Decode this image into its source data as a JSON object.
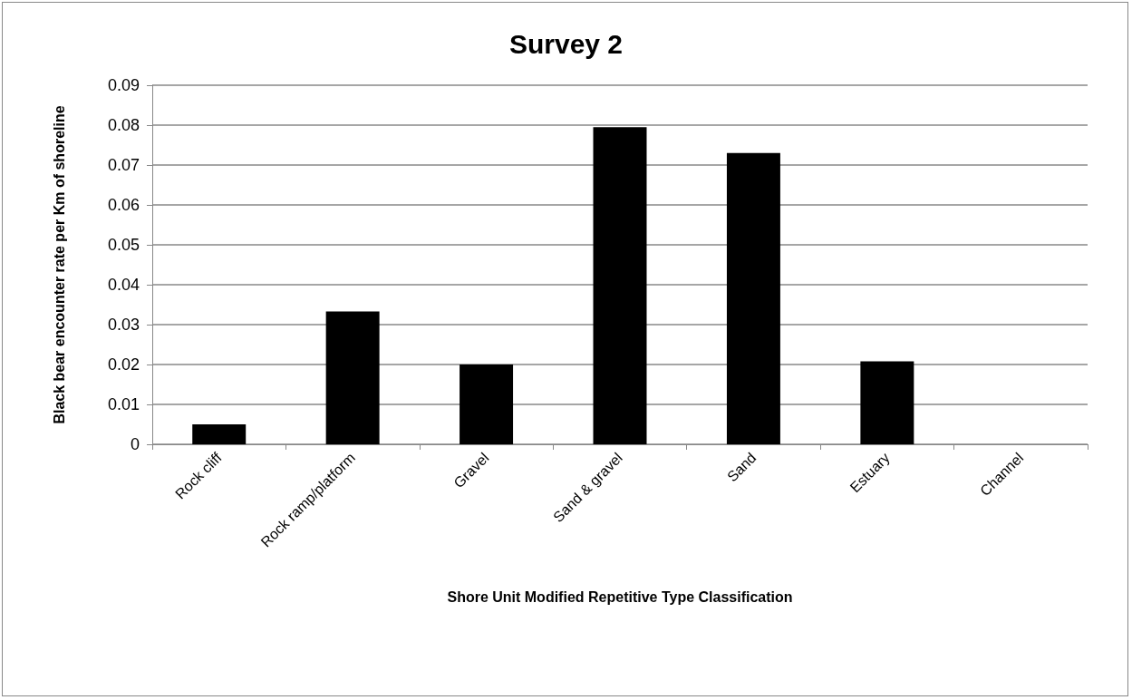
{
  "chart_data": {
    "type": "bar",
    "title": "Survey 2",
    "xlabel": "Shore Unit Modified Repetitive Type Classification",
    "ylabel": "Black bear encounter rate per Km of shoreline",
    "categories": [
      "Rock cliff",
      "Rock ramp/platform",
      "Gravel",
      "Sand & gravel",
      "Sand",
      "Estuary",
      "Channel"
    ],
    "values": [
      0.005,
      0.0333,
      0.02,
      0.0795,
      0.073,
      0.0208,
      0
    ],
    "color": "#000000",
    "ylim": [
      0,
      0.09
    ],
    "yticks": [
      0,
      0.01,
      0.02,
      0.03,
      0.04,
      0.05,
      0.06,
      0.07,
      0.08,
      0.09
    ],
    "grid": "y"
  }
}
